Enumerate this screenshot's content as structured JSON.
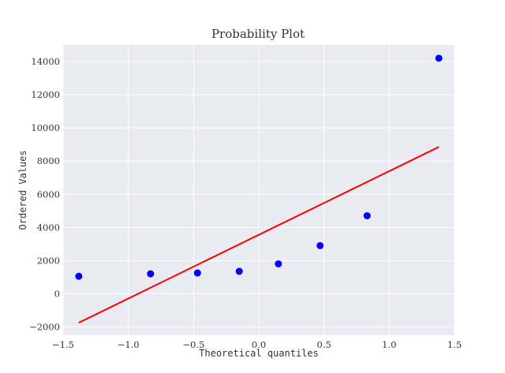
{
  "chart_data": {
    "type": "scatter",
    "title": "Probability Plot",
    "xlabel": "Theoretical quantiles",
    "ylabel": "Ordered Values",
    "xlim": [
      -1.5,
      1.5
    ],
    "ylim": [
      -2500,
      15000
    ],
    "xticks": [
      -1.5,
      -1.0,
      -0.5,
      0.0,
      0.5,
      1.0,
      1.5
    ],
    "xtick_labels": [
      "−1.5",
      "−1.0",
      "−0.5",
      "0.0",
      "0.5",
      "1.0",
      "1.5"
    ],
    "yticks": [
      -2000,
      0,
      2000,
      4000,
      6000,
      8000,
      10000,
      12000,
      14000
    ],
    "ytick_labels": [
      "−2000",
      "0",
      "2000",
      "4000",
      "6000",
      "8000",
      "10000",
      "12000",
      "14000"
    ],
    "grid": true,
    "points": {
      "x": [
        -1.38,
        -0.83,
        -0.47,
        -0.15,
        0.15,
        0.47,
        0.83,
        1.38
      ],
      "y": [
        1050,
        1200,
        1250,
        1350,
        1800,
        2900,
        4700,
        14200
      ],
      "color": "#0000ff"
    },
    "fit_line": {
      "x": [
        -1.38,
        1.38
      ],
      "y": [
        -1750,
        8850
      ],
      "color": "#ff0000"
    },
    "background": "#eaeaf2",
    "grid_color": "#ffffff"
  }
}
